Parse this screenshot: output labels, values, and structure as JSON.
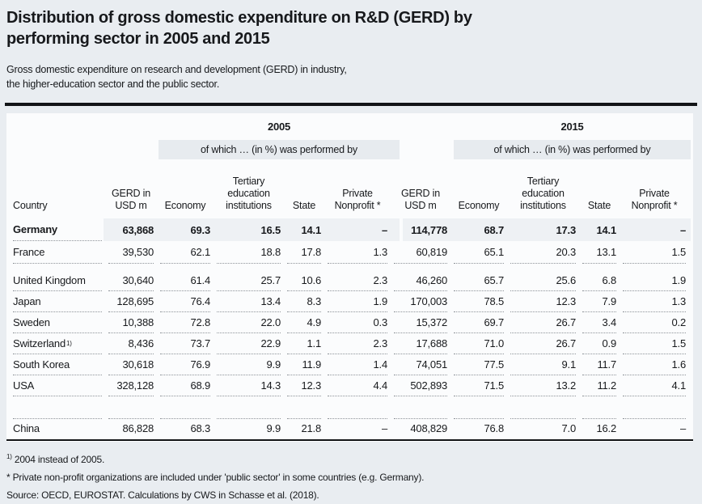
{
  "header": {
    "title_lines": [
      "Distribution of gross domestic expenditure on R&D (GERD) by",
      "performing sector in 2005 and 2015"
    ],
    "subtitle_lines": [
      "Gross domestic expenditure on research and development (GERD) in industry,",
      "the higher-education sector and the public sector."
    ]
  },
  "table": {
    "country_col_label": "Country",
    "groups": [
      {
        "year": "2005",
        "of_which_label": "of which … (in %) was performed by"
      },
      {
        "year": "2015",
        "of_which_label": "of which … (in %) was performed by"
      }
    ],
    "sub_columns": {
      "gerd_lines": [
        "GERD in",
        "USD m"
      ],
      "economy": "Economy",
      "tertiary_lines": [
        "Tertiary",
        "education",
        "institutions"
      ],
      "state": "State",
      "nonprofit_lines": [
        "Private",
        "Nonprofit *"
      ]
    },
    "row_groups": [
      {
        "rows": [
          {
            "country": "Germany",
            "emphasis": true,
            "values": [
              "63,868",
              "69.3",
              "16.5",
              "14.1",
              "–",
              "114,778",
              "68.7",
              "17.3",
              "14.1",
              "–"
            ]
          },
          {
            "country": "France",
            "values": [
              "39,530",
              "62.1",
              "18.8",
              "17.8",
              "1.3",
              "60,819",
              "65.1",
              "20.3",
              "13.1",
              "1.5"
            ]
          }
        ]
      },
      {
        "rows": [
          {
            "country": "United Kingdom",
            "values": [
              "30,640",
              "61.4",
              "25.7",
              "10.6",
              "2.3",
              "46,260",
              "65.7",
              "25.6",
              "6.8",
              "1.9"
            ]
          },
          {
            "country": "Japan",
            "values": [
              "128,695",
              "76.4",
              "13.4",
              "8.3",
              "1.9",
              "170,003",
              "78.5",
              "12.3",
              "7.9",
              "1.3"
            ]
          },
          {
            "country": "Sweden",
            "values": [
              "10,388",
              "72.8",
              "22.0",
              "4.9",
              "0.3",
              "15,372",
              "69.7",
              "26.7",
              "3.4",
              "0.2"
            ]
          },
          {
            "country": "Switzerland",
            "sup": "1)",
            "values": [
              "8,436",
              "73.7",
              "22.9",
              "1.1",
              "2.3",
              "17,688",
              "71.0",
              "26.7",
              "0.9",
              "1.5"
            ]
          },
          {
            "country": "South Korea",
            "values": [
              "30,618",
              "76.9",
              "9.9",
              "11.9",
              "1.4",
              "74,051",
              "77.5",
              "9.1",
              "11.7",
              "1.6"
            ]
          },
          {
            "country": "USA",
            "values": [
              "328,128",
              "68.9",
              "14.3",
              "12.3",
              "4.4",
              "502,893",
              "71.5",
              "13.2",
              "11.2",
              "4.1"
            ]
          }
        ]
      },
      {
        "rows": [
          {
            "country": "China",
            "values": [
              "86,828",
              "68.3",
              "9.9",
              "21.8",
              "–",
              "408,829",
              "76.8",
              "7.0",
              "16.2",
              "–"
            ]
          }
        ]
      }
    ]
  },
  "footnotes": {
    "note1_sup": "1)",
    "note1_text": " 2004 instead of 2005.",
    "note2": "* Private non-profit organizations are included under 'public sector' in some countries (e.g. Germany).",
    "source": "Source: OECD, EUROSTAT. Calculations by CWS in Schasse et al. (2018)."
  }
}
